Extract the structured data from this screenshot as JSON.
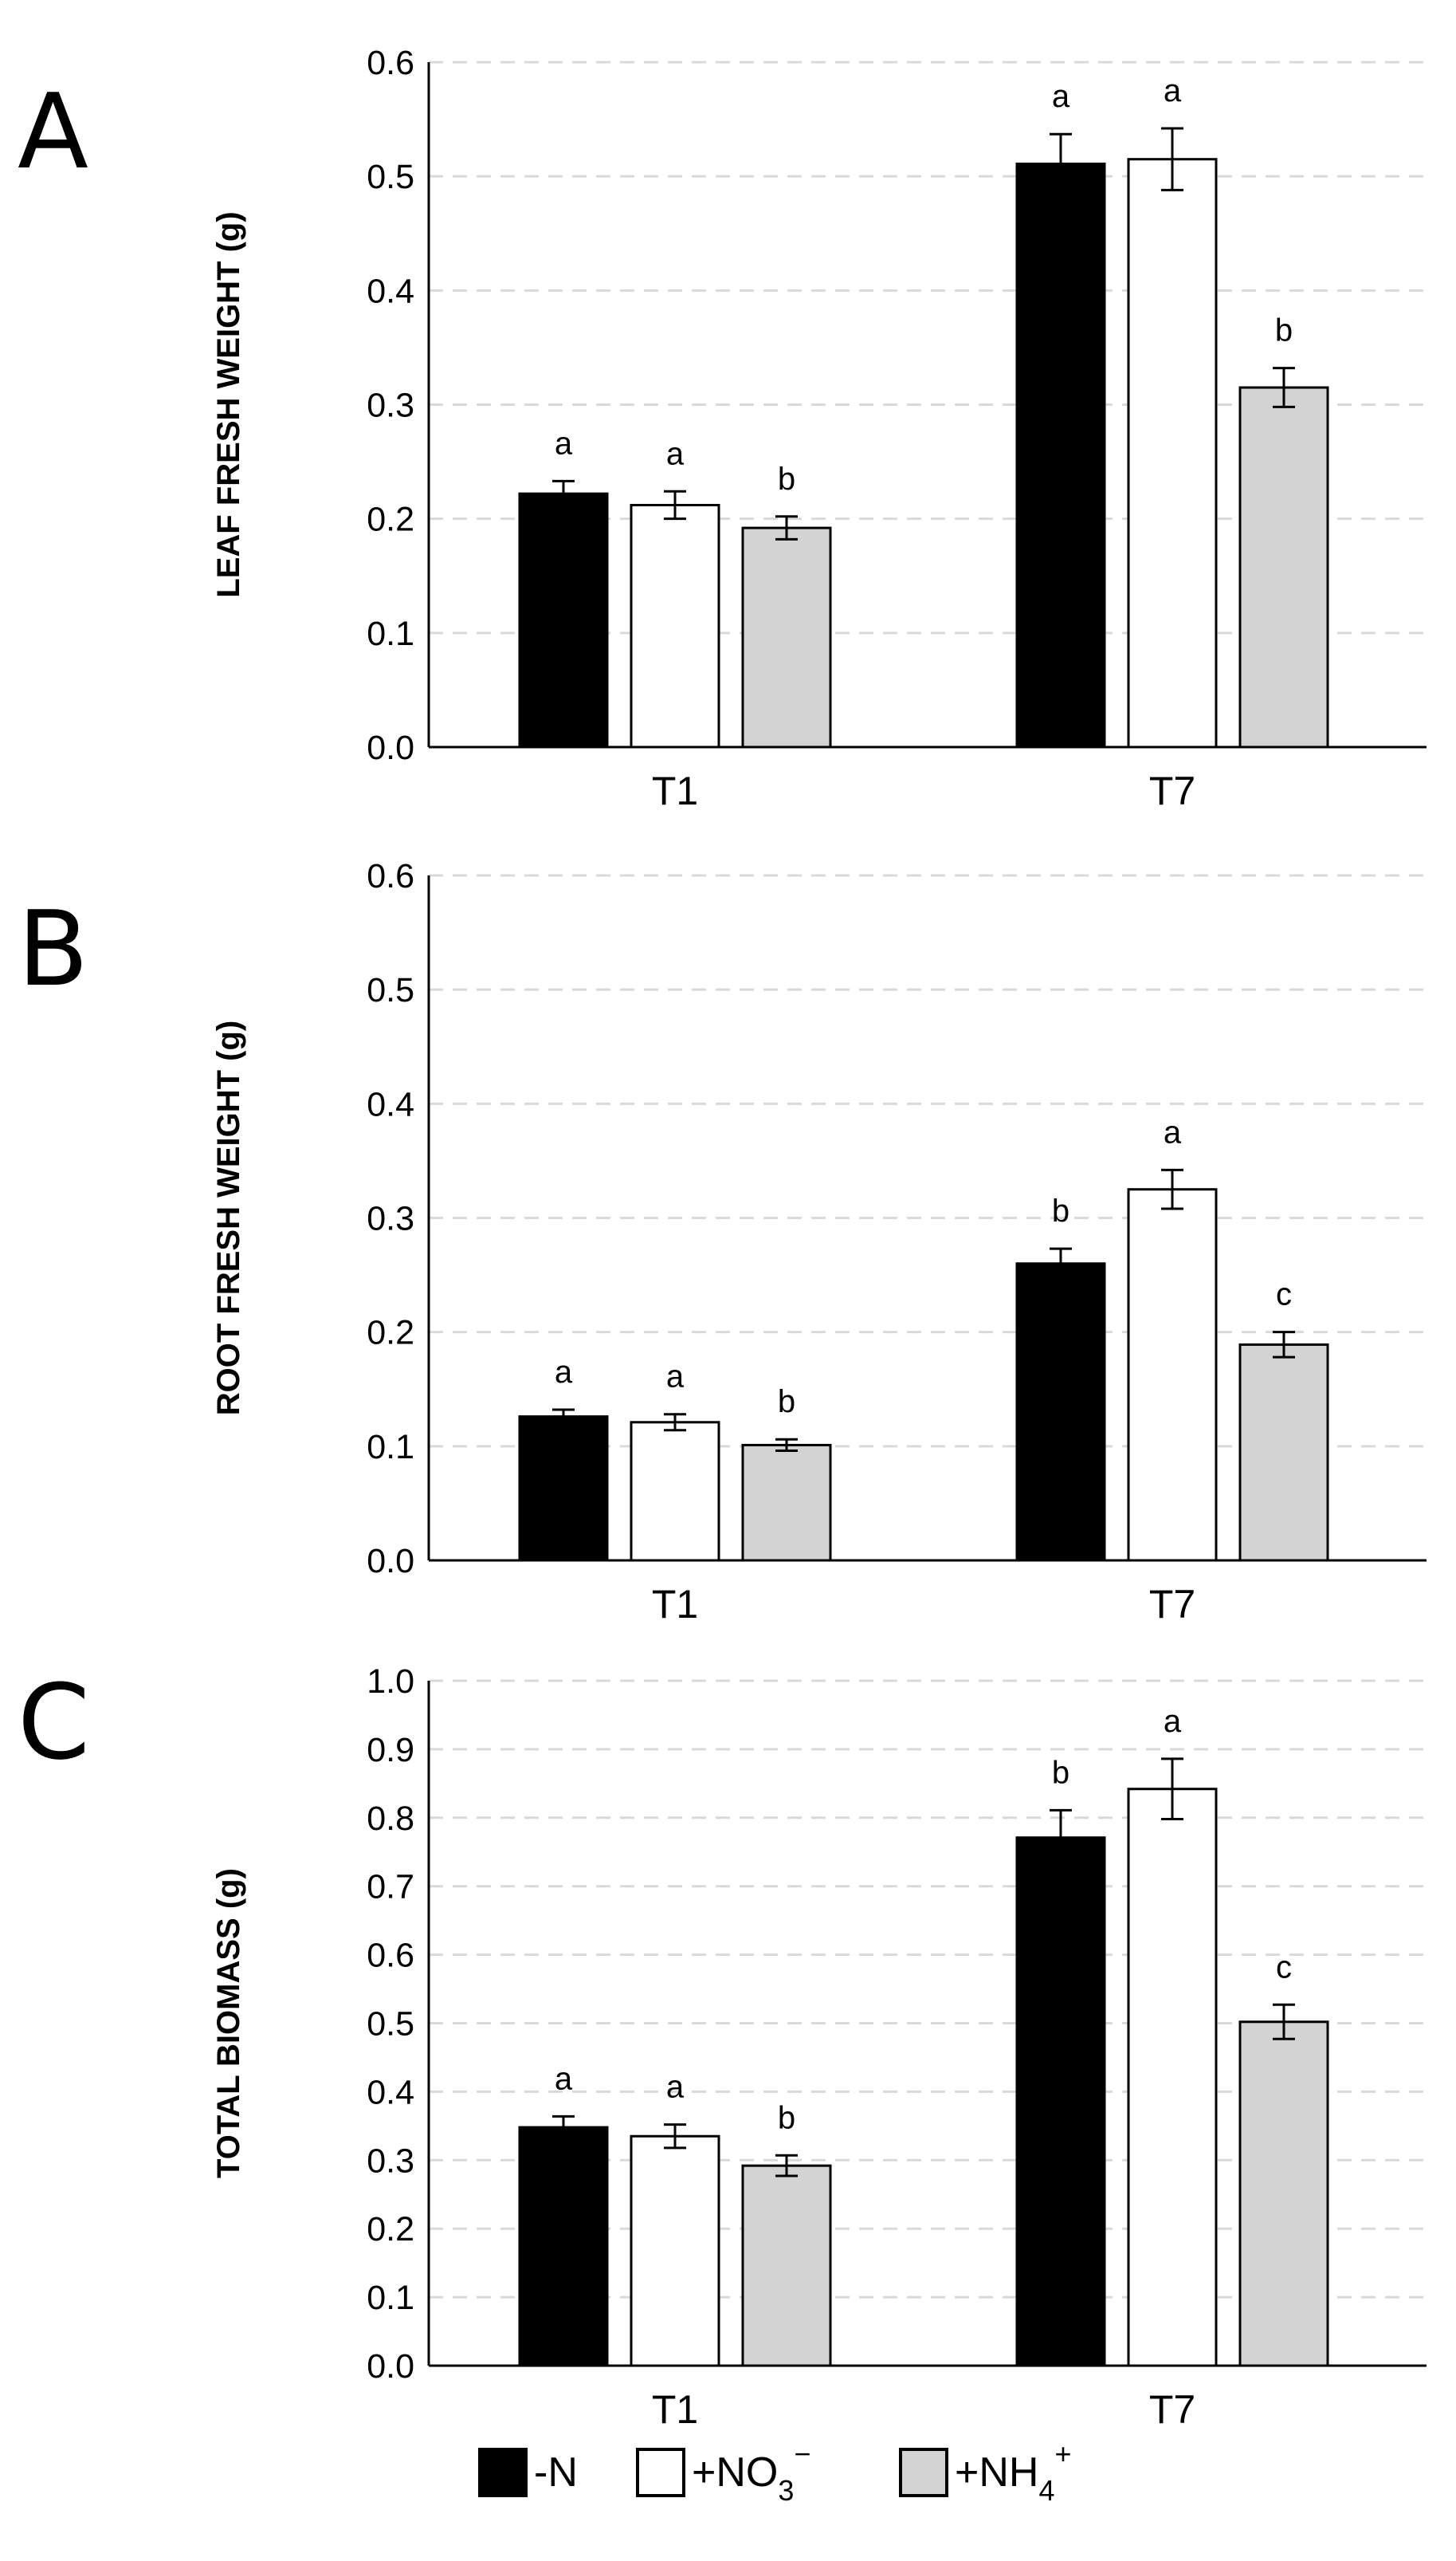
{
  "chart_data": [
    {
      "panel_label": "A",
      "type": "bar",
      "ylabel": "LEAF FRESH WEIGHT (g)",
      "xlabel": "",
      "ylim": [
        0,
        0.6
      ],
      "yticks": [
        "0.0",
        "0.1",
        "0.2",
        "0.3",
        "0.4",
        "0.5",
        "0.6"
      ],
      "categories": [
        "T1",
        "T7"
      ],
      "grid": true,
      "series": [
        {
          "name": "-N",
          "color": "#000000",
          "values": [
            0.222,
            0.511
          ],
          "errors": [
            0.011,
            0.026
          ],
          "letters": [
            "a",
            "a"
          ]
        },
        {
          "name": "+NO3-",
          "color": "#ffffff",
          "values": [
            0.212,
            0.515
          ],
          "errors": [
            0.012,
            0.027
          ],
          "letters": [
            "a",
            "a"
          ]
        },
        {
          "name": "+NH4+",
          "color": "#d3d3d3",
          "values": [
            0.192,
            0.315
          ],
          "errors": [
            0.01,
            0.017
          ],
          "letters": [
            "b",
            "b"
          ]
        }
      ]
    },
    {
      "panel_label": "B",
      "type": "bar",
      "ylabel": "ROOT FRESH WEIGHT (g)",
      "xlabel": "",
      "ylim": [
        0,
        0.6
      ],
      "yticks": [
        "0.0",
        "0.1",
        "0.2",
        "0.3",
        "0.4",
        "0.5",
        "0.6"
      ],
      "categories": [
        "T1",
        "T7"
      ],
      "grid": true,
      "series": [
        {
          "name": "-N",
          "color": "#000000",
          "values": [
            0.126,
            0.26
          ],
          "errors": [
            0.006,
            0.013
          ],
          "letters": [
            "a",
            "b"
          ]
        },
        {
          "name": "+NO3-",
          "color": "#ffffff",
          "values": [
            0.121,
            0.325
          ],
          "errors": [
            0.007,
            0.017
          ],
          "letters": [
            "a",
            "a"
          ]
        },
        {
          "name": "+NH4+",
          "color": "#d3d3d3",
          "values": [
            0.101,
            0.189
          ],
          "errors": [
            0.005,
            0.011
          ],
          "letters": [
            "b",
            "c"
          ]
        }
      ]
    },
    {
      "panel_label": "C",
      "type": "bar",
      "ylabel": "TOTAL BIOMASS (g)",
      "xlabel": "",
      "ylim": [
        0,
        1.0
      ],
      "yticks": [
        "0.0",
        "0.1",
        "0.2",
        "0.3",
        "0.4",
        "0.5",
        "0.6",
        "0.7",
        "0.8",
        "0.9",
        "1.0"
      ],
      "categories": [
        "T1",
        "T7"
      ],
      "grid": true,
      "series": [
        {
          "name": "-N",
          "color": "#000000",
          "values": [
            0.348,
            0.771
          ],
          "errors": [
            0.016,
            0.04
          ],
          "letters": [
            "a",
            "b"
          ]
        },
        {
          "name": "+NO3-",
          "color": "#ffffff",
          "values": [
            0.335,
            0.842
          ],
          "errors": [
            0.017,
            0.044
          ],
          "letters": [
            "a",
            "a"
          ]
        },
        {
          "name": "+NH4+",
          "color": "#d3d3d3",
          "values": [
            0.292,
            0.502
          ],
          "errors": [
            0.015,
            0.025
          ],
          "letters": [
            "b",
            "c"
          ]
        }
      ]
    }
  ],
  "legend": {
    "position": "bottom-center",
    "items": [
      {
        "base": "-N",
        "sub": "",
        "sup": "",
        "color": "#000000"
      },
      {
        "base": "+NO",
        "sub": "3",
        "sup": "−",
        "color": "#ffffff"
      },
      {
        "base": "+NH",
        "sub": "4",
        "sup": "+",
        "color": "#d3d3d3"
      }
    ]
  }
}
